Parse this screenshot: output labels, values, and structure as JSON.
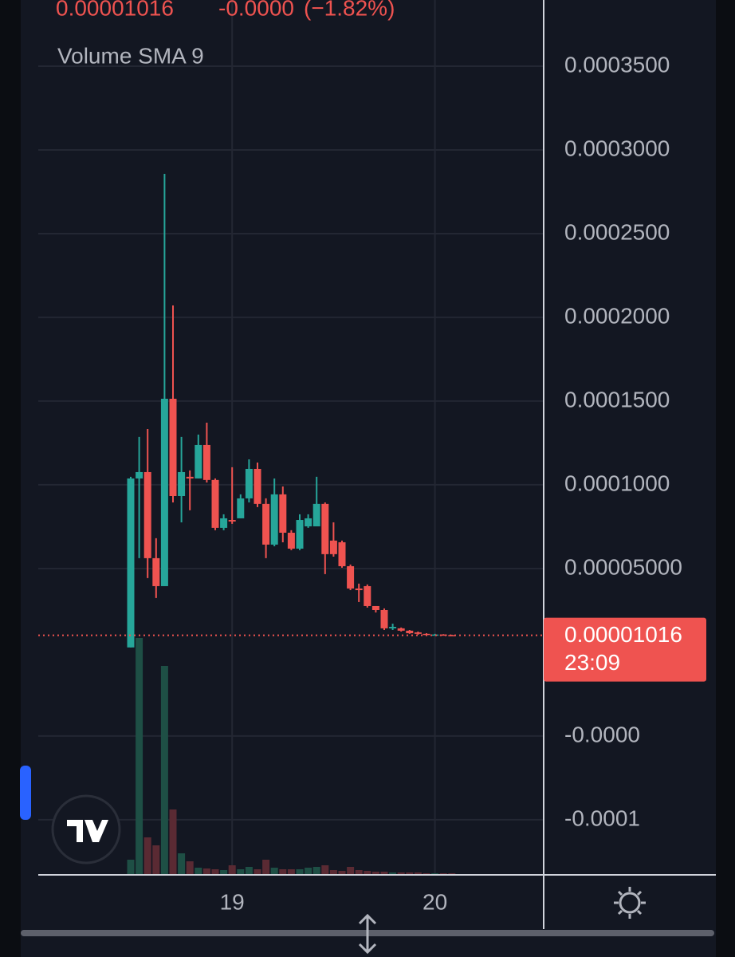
{
  "chart_data": {
    "type": "candlestick",
    "legend_close": "0.00001016",
    "legend_change": "-0.0000",
    "legend_change_pct": "(−1.82%)",
    "indicator_label": "Volume SMA 9",
    "categories": [
      null,
      null,
      null,
      null,
      null,
      null,
      null,
      null,
      null,
      null,
      null,
      null,
      "19",
      null,
      null,
      null,
      null,
      null,
      null,
      null,
      null,
      null,
      null,
      null,
      null,
      null,
      null,
      null,
      null,
      null,
      null,
      null,
      null,
      null,
      null,
      null,
      "20",
      null,
      null
    ],
    "open": [
      2.9e-06,
      0.0001038,
      0.0001076,
      5.62e-05,
      3.95e-05,
      0.0001514,
      9.33e-05,
      0.0001048,
      0.0001038,
      0.0001238,
      0.0001029,
      7.43e-05,
      7.9e-05,
      8e-05,
      9.19e-05,
      0.0001095,
      8.86e-05,
      6.43e-05,
      9.43e-05,
      7.14e-05,
      6.19e-05,
      7.52e-05,
      7.52e-05,
      8.86e-05,
      6.67e-05,
      6.57e-05,
      5.14e-05,
      3.81e-05,
      3.95e-05,
      2.76e-05,
      2.52e-05,
      1.43e-05,
      1.43e-05,
      1.29e-05,
      1.19e-05,
      1.1e-05,
      1.02e-05,
      1.06e-05,
      1.03e-05
    ],
    "high": [
      0.0001048,
      0.0001286,
      0.0001333,
      6.81e-05,
      0.0002857,
      0.0002071,
      0.0001286,
      0.0001086,
      0.00013,
      0.0001371,
      0.0001038,
      8.24e-05,
      0.0001105,
      9.43e-05,
      0.0001152,
      0.0001133,
      9.19e-05,
      0.0001038,
      9.9e-05,
      7.29e-05,
      8.24e-05,
      8.24e-05,
      0.0001048,
      8.95e-05,
      7.76e-05,
      6.67e-05,
      5.24e-05,
      4.1e-05,
      4.05e-05,
      2.76e-05,
      2.62e-05,
      1.71e-05,
      1.48e-05,
      1.33e-05,
      1.24e-05,
      1.14e-05,
      1.1e-05,
      1.08e-05,
      1.05e-05
    ],
    "low": [
      2.9e-06,
      5.62e-05,
      4.43e-05,
      3.24e-05,
      3.95e-05,
      8.95e-05,
      7.76e-05,
      8.48e-05,
      0.0001038,
      0.0001014,
      7.29e-05,
      7.29e-05,
      7.67e-05,
      8e-05,
      8.95e-05,
      8.67e-05,
      5.62e-05,
      6.33e-05,
      6.57e-05,
      6.1e-05,
      6.1e-05,
      7.43e-05,
      7.52e-05,
      4.67e-05,
      5.71e-05,
      5.05e-05,
      3.71e-05,
      3e-05,
      2.67e-05,
      2.38e-05,
      1.33e-05,
      1.33e-05,
      1.24e-05,
      1.1e-05,
      1.05e-05,
      1e-05,
      1e-05,
      1e-05,
      1e-05
    ],
    "close": [
      0.0001038,
      0.0001076,
      5.62e-05,
      3.95e-05,
      0.0001514,
      9.33e-05,
      0.0001076,
      0.0001038,
      0.0001238,
      0.0001029,
      7.43e-05,
      8e-05,
      7.81e-05,
      9.19e-05,
      0.0001095,
      8.86e-05,
      6.43e-05,
      9.43e-05,
      7.14e-05,
      6.19e-05,
      7.9e-05,
      8e-05,
      8.86e-05,
      5.86e-05,
      5.86e-05,
      5.14e-05,
      3.81e-05,
      3.71e-05,
      2.76e-05,
      2.52e-05,
      1.43e-05,
      1.52e-05,
      1.29e-05,
      1.14e-05,
      1.1e-05,
      1.05e-05,
      1.06e-05,
      1.03e-05,
      1.016e-05
    ],
    "volume": [
      19,
      297,
      47,
      37,
      262,
      82,
      27,
      17,
      9,
      8,
      7,
      6,
      12,
      7,
      10,
      7,
      19,
      9,
      7,
      7,
      7,
      9,
      10,
      12,
      6,
      5,
      10,
      6,
      5,
      4,
      4,
      3,
      3,
      3,
      3,
      2,
      2,
      2,
      2
    ],
    "up_color": "#26a69a",
    "down_color": "#ef5350",
    "volume_up_color": "#1e4f45",
    "volume_down_color": "#5a2a33",
    "ylim": [
      -0.0001329,
      0.0003895
    ],
    "yticks": [
      {
        "value": 0.00035,
        "label": "0.0003500"
      },
      {
        "value": 0.0003,
        "label": "0.0003000"
      },
      {
        "value": 0.00025,
        "label": "0.0002500"
      },
      {
        "value": 0.0002,
        "label": "0.0002000"
      },
      {
        "value": 0.00015,
        "label": "0.0001500"
      },
      {
        "value": 0.0001,
        "label": "0.0001000"
      },
      {
        "value": 5e-05,
        "label": "0.00005000"
      },
      {
        "value": -5e-05,
        "label": "-0.0000"
      },
      {
        "value": -0.0001,
        "label": "-0.0001"
      }
    ],
    "grid": true,
    "last_price": 1.016e-05,
    "countdown": "23:09"
  }
}
